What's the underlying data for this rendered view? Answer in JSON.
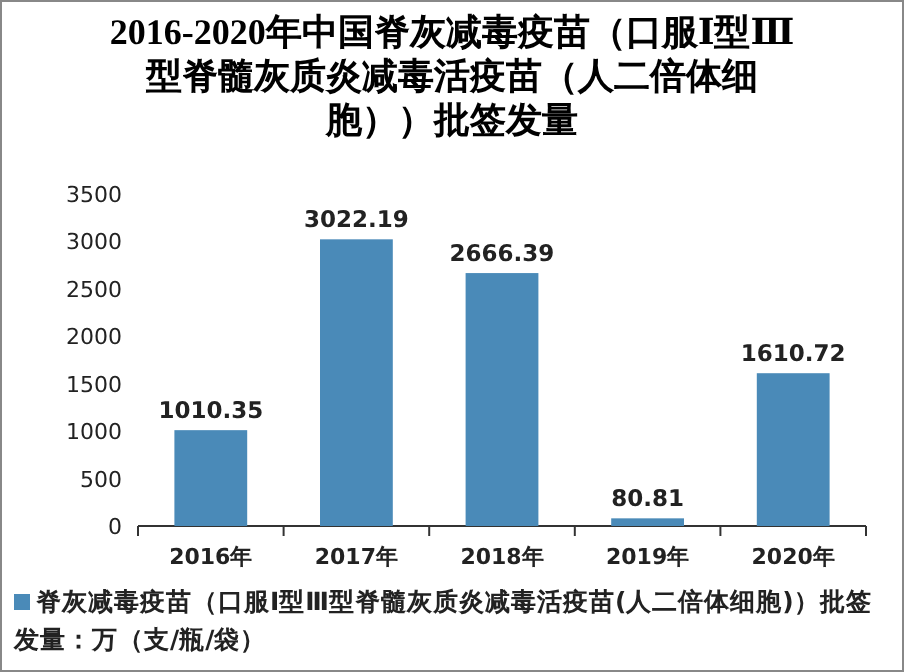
{
  "chart_data": {
    "type": "bar",
    "title": "2016-2020年中国脊灰减毒疫苗（口服Ⅰ型Ⅲ型脊髓灰质炎减毒活疫苗（人二倍体细胞））批签发量",
    "categories": [
      "2016年",
      "2017年",
      "2018年",
      "2019年",
      "2020年"
    ],
    "series": [
      {
        "name": "脊灰减毒疫苗（口服Ⅰ型Ⅲ型脊髓灰质炎减毒活疫苗(人二倍体细胞)）批签发量：万（支/瓶/袋）",
        "color": "#4a8ab8",
        "values": [
          1010.35,
          3022.19,
          2666.39,
          80.81,
          1610.72
        ]
      }
    ],
    "ylim": [
      0,
      3500
    ],
    "yticks": [
      0,
      500,
      1000,
      1500,
      2000,
      2500,
      3000,
      3500
    ],
    "data_labels": true,
    "grid": false,
    "legend": "bottom"
  }
}
